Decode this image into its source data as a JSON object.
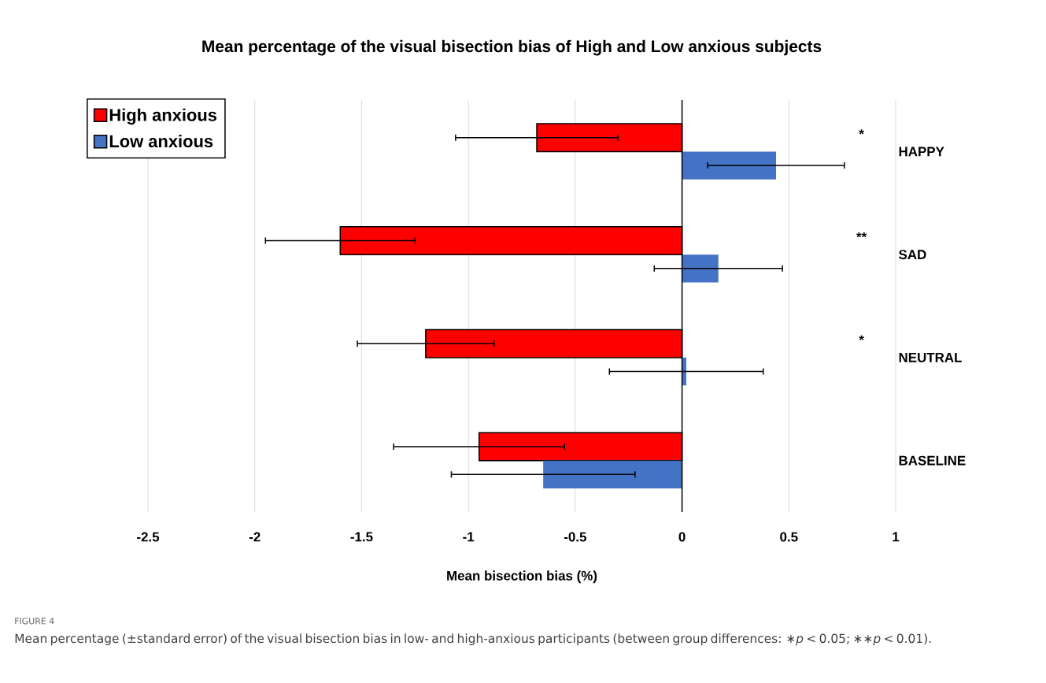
{
  "chart_data": {
    "type": "bar",
    "orientation": "horizontal",
    "title": "Mean percentage of the visual bisection bias of High and Low anxious subjects",
    "xlabel": "Mean bisection bias (%)",
    "categories": [
      "HAPPY",
      "SAD",
      "NEUTRAL",
      "BASELINE"
    ],
    "series": [
      {
        "name": "High anxious",
        "color": "#ff0000",
        "values": [
          -0.68,
          -1.6,
          -1.2,
          -0.95
        ],
        "errors": [
          0.38,
          0.35,
          0.32,
          0.4
        ]
      },
      {
        "name": "Low anxious",
        "color": "#4472c4",
        "values": [
          0.44,
          0.17,
          0.02,
          -0.65
        ],
        "errors": [
          0.32,
          0.3,
          0.36,
          0.43
        ]
      }
    ],
    "xlim": [
      -2.5,
      1
    ],
    "xticks": [
      -2.5,
      -2,
      -1.5,
      -1,
      -0.5,
      0,
      0.5,
      1
    ],
    "grid": "x",
    "legend": "top left",
    "annotations": [
      "*",
      "**",
      "*",
      "FIGURE 4",
      "Mean percentage (±standard error) of the visual bisection bias in low- and high-anxious participants (between group differences: ∗*p* < 0.05; ∗∗*p* < 0.01)."
    ]
  }
}
